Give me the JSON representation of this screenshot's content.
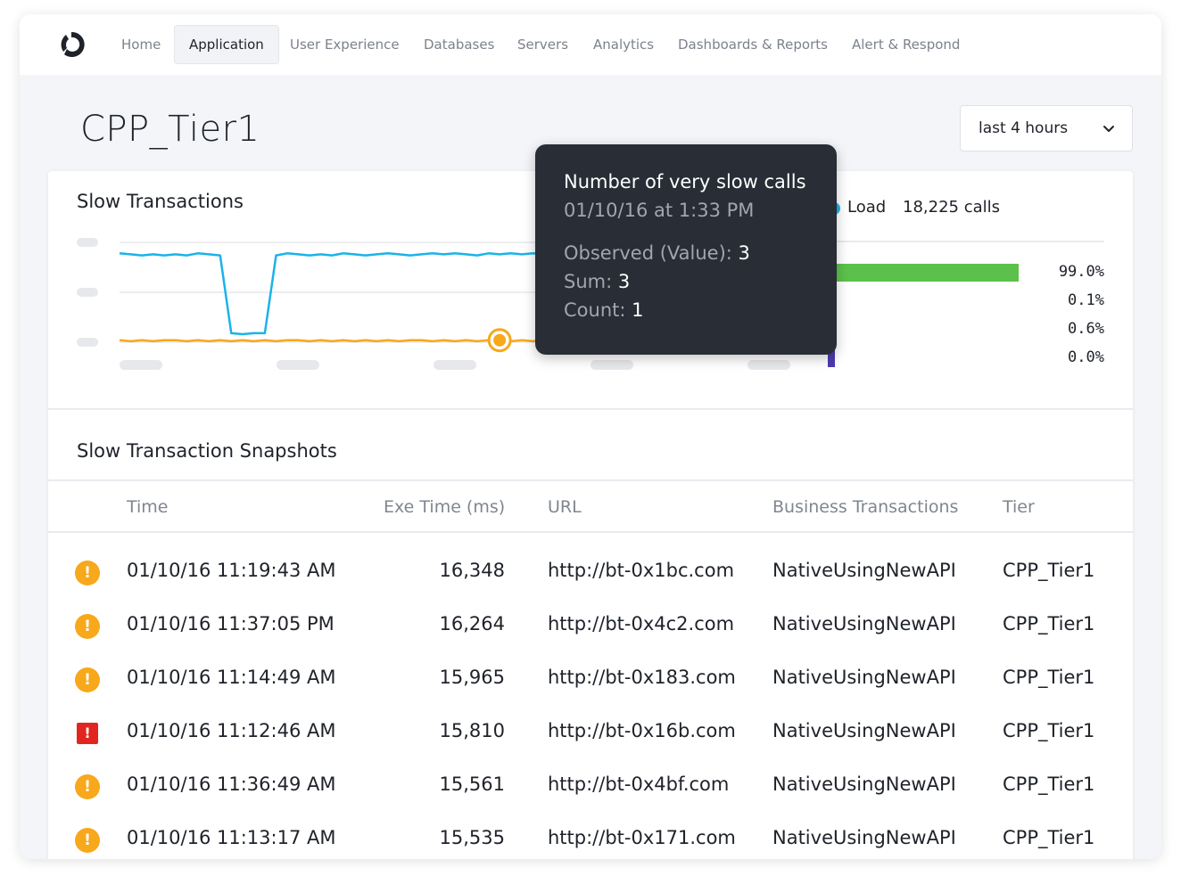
{
  "nav": {
    "items": [
      {
        "label": "Home",
        "active": false
      },
      {
        "label": "Application",
        "active": true
      },
      {
        "label": "User Experience",
        "active": false
      },
      {
        "label": "Databases",
        "active": false
      },
      {
        "label": "Servers",
        "active": false
      },
      {
        "label": "Analytics",
        "active": false
      },
      {
        "label": "Dashboards & Reports",
        "active": false
      },
      {
        "label": "Alert & Respond",
        "active": false
      }
    ]
  },
  "page": {
    "title": "CPP_Tier1",
    "time_range": "last 4 hours"
  },
  "slow_transactions": {
    "title": "Slow Transactions",
    "legend": {
      "name": "Load",
      "value": "18,225 calls",
      "color": "#1ab3e8"
    },
    "distribution": [
      {
        "percent": "99.0%",
        "fraction": 0.99,
        "color": "#5cc14a"
      },
      {
        "percent": "0.1%",
        "fraction": 0.001,
        "color": "#f5c518"
      },
      {
        "percent": "0.6%",
        "fraction": 0.006,
        "color": "#f7a81b"
      },
      {
        "percent": "0.0%",
        "fraction": 0.0,
        "color": "#4b3bb0"
      }
    ]
  },
  "chart_data": {
    "type": "line",
    "title": "",
    "xlabel": "",
    "ylabel": "",
    "y_tick_labels_visible": false,
    "x_tick_labels_visible": false,
    "ylim": [
      0,
      10
    ],
    "x": [
      0,
      1,
      2,
      3,
      4,
      5,
      6,
      7,
      8,
      9,
      10,
      11,
      12,
      13,
      14,
      15,
      16,
      17,
      18,
      19,
      20,
      21,
      22,
      23,
      24,
      25,
      26,
      27,
      28,
      29,
      30,
      31,
      32,
      33,
      34,
      35,
      36,
      37,
      38,
      39,
      40,
      41,
      42,
      43,
      44,
      45,
      46,
      47,
      48,
      49,
      50,
      51,
      52,
      53,
      54,
      55,
      56,
      57,
      58,
      59,
      60
    ],
    "series": [
      {
        "color": "#1ab3e8",
        "values": [
          8.9,
          8.8,
          8.7,
          8.8,
          8.7,
          8.8,
          8.7,
          8.9,
          8.8,
          8.7,
          0.9,
          0.8,
          0.9,
          0.9,
          8.7,
          8.9,
          8.8,
          8.7,
          8.8,
          8.7,
          8.9,
          8.8,
          8.7,
          8.8,
          8.9,
          8.8,
          8.7,
          8.8,
          8.9,
          8.8,
          8.9,
          8.8,
          8.7,
          8.9,
          8.8,
          8.9,
          8.8,
          8.9,
          8.8,
          8.8,
          8.9,
          8.8,
          8.9,
          8.7,
          8.8,
          8.9,
          8.8,
          8.7,
          8.9,
          8.8,
          8.7,
          8.8,
          8.9,
          8.8,
          8.7,
          8.9,
          8.8,
          8.7,
          8.8,
          8.9,
          8.8
        ]
      },
      {
        "color": "#f7a81b",
        "values": [
          0.2,
          0.1,
          0.2,
          0.1,
          0.2,
          0.2,
          0.1,
          0.2,
          0.1,
          0.2,
          0.1,
          0.2,
          0.1,
          0.2,
          0.1,
          0.2,
          0.2,
          0.1,
          0.2,
          0.1,
          0.2,
          0.1,
          0.2,
          0.1,
          0.2,
          0.1,
          0.2,
          0.2,
          0.1,
          0.2,
          0.1,
          0.2,
          0.1,
          0.2,
          0.2,
          0.1,
          0.2,
          0.1,
          0.2,
          0.1,
          0.2,
          0.2,
          0.1,
          0.2,
          0.1,
          0.2,
          0.1,
          0.2,
          0.1,
          0.2,
          0.2,
          0.1,
          0.2,
          0.1,
          0.2,
          0.1,
          0.2,
          0.1,
          0.2,
          0.1,
          0.2
        ]
      }
    ],
    "highlight": {
      "series": 1,
      "x": 34
    }
  },
  "tooltip": {
    "title": "Number of very slow calls",
    "date": "01/10/16 at 1:33 PM",
    "observed_label": "Observed (Value):",
    "observed_value": "3",
    "sum_label": "Sum:",
    "sum_value": "3",
    "count_label": "Count:",
    "count_value": "1"
  },
  "snapshots": {
    "title": "Slow Transaction Snapshots",
    "columns": [
      "Time",
      "Exe Time (ms)",
      "URL",
      "Business Transactions",
      "Tier"
    ],
    "rows": [
      {
        "severity": "warning",
        "icon": "!",
        "time": "01/10/16 11:19:43 AM",
        "exe_time": "16,348",
        "url": "http://bt-0x1bc.com",
        "bt": "NativeUsingNewAPI",
        "tier": "CPP_Tier1"
      },
      {
        "severity": "warning",
        "icon": "!",
        "time": "01/10/16 11:37:05 PM",
        "exe_time": "16,264",
        "url": "http://bt-0x4c2.com",
        "bt": "NativeUsingNewAPI",
        "tier": "CPP_Tier1"
      },
      {
        "severity": "warning",
        "icon": "!",
        "time": "01/10/16 11:14:49 AM",
        "exe_time": "15,965",
        "url": "http://bt-0x183.com",
        "bt": "NativeUsingNewAPI",
        "tier": "CPP_Tier1"
      },
      {
        "severity": "error",
        "icon": "!",
        "time": "01/10/16 11:12:46 AM",
        "exe_time": "15,810",
        "url": "http://bt-0x16b.com",
        "bt": "NativeUsingNewAPI",
        "tier": "CPP_Tier1"
      },
      {
        "severity": "warning",
        "icon": "!",
        "time": "01/10/16 11:36:49 AM",
        "exe_time": "15,561",
        "url": "http://bt-0x4bf.com",
        "bt": "NativeUsingNewAPI",
        "tier": "CPP_Tier1"
      },
      {
        "severity": "warning",
        "icon": "!",
        "time": "01/10/16 11:13:17 AM",
        "exe_time": "15,535",
        "url": "http://bt-0x171.com",
        "bt": "NativeUsingNewAPI",
        "tier": "CPP_Tier1"
      }
    ]
  }
}
